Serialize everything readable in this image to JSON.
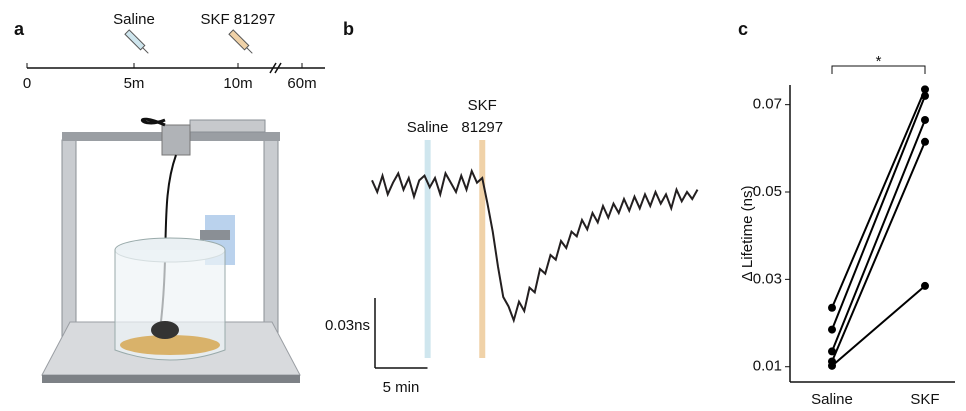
{
  "timeline": {
    "label": "a",
    "ticks": [
      "0",
      "5m",
      "10m",
      "60m"
    ],
    "events": [
      "Saline",
      "SKF 81297"
    ]
  },
  "chart_data": [
    {
      "type": "trace",
      "label": "b",
      "color": "#231f20",
      "events": [
        {
          "lines": [
            "Saline"
          ],
          "x": 5.3,
          "color": "#cfe6ee"
        },
        {
          "lines": [
            "SKF",
            "81297"
          ],
          "x": 10.5,
          "color": "#f0d2a8"
        }
      ],
      "scale_bars": {
        "y": {
          "value": 0.03,
          "label": "0.03ns"
        },
        "x": {
          "value": 5,
          "label": "5 min"
        }
      },
      "x": [
        0,
        0.5,
        1,
        1.5,
        2,
        2.5,
        3,
        3.5,
        4,
        4.5,
        5,
        5.5,
        6,
        6.5,
        7,
        7.5,
        8,
        8.5,
        9,
        9.5,
        10,
        10.5,
        11,
        11.5,
        12,
        12.5,
        13,
        13.5,
        14,
        14.5,
        15,
        15.5,
        16,
        16.5,
        17,
        17.5,
        18,
        18.5,
        19,
        19.5,
        20,
        20.5,
        21,
        21.5,
        22,
        22.5,
        23,
        23.5,
        24,
        24.5,
        25,
        25.5,
        26,
        26.5,
        27,
        27.5,
        28,
        28.5,
        29,
        29.5,
        30,
        30.5,
        31
      ],
      "values": [
        0.002,
        -0.003,
        0.004,
        -0.004,
        0.001,
        0.005,
        -0.002,
        0.003,
        -0.005,
        0.002,
        0.004,
        -0.001,
        0.003,
        -0.004,
        0.005,
        0.001,
        -0.003,
        0.004,
        -0.002,
        0.006,
        0.001,
        0.003,
        -0.008,
        -0.02,
        -0.035,
        -0.048,
        -0.052,
        -0.058,
        -0.05,
        -0.054,
        -0.044,
        -0.046,
        -0.036,
        -0.038,
        -0.03,
        -0.032,
        -0.024,
        -0.027,
        -0.02,
        -0.022,
        -0.015,
        -0.019,
        -0.012,
        -0.016,
        -0.009,
        -0.014,
        -0.008,
        -0.012,
        -0.006,
        -0.011,
        -0.005,
        -0.01,
        -0.004,
        -0.009,
        -0.003,
        -0.008,
        -0.004,
        -0.01,
        -0.002,
        -0.007,
        -0.003,
        -0.006,
        -0.002
      ]
    },
    {
      "type": "paired",
      "label": "c",
      "y_label": "Δ Lifetime (ns)",
      "categories": [
        "Saline",
        "SKF"
      ],
      "annotation": "*",
      "color": "#000000",
      "ylim": [
        0.0065,
        0.0745
      ],
      "yticks": [
        0.01,
        0.03,
        0.05,
        0.07
      ],
      "series": [
        {
          "values": [
            0.0235,
            0.0735
          ]
        },
        {
          "values": [
            0.0185,
            0.072
          ]
        },
        {
          "values": [
            0.0135,
            0.0665
          ]
        },
        {
          "values": [
            0.0112,
            0.0615
          ]
        },
        {
          "values": [
            0.0102,
            0.0285
          ]
        }
      ]
    }
  ]
}
